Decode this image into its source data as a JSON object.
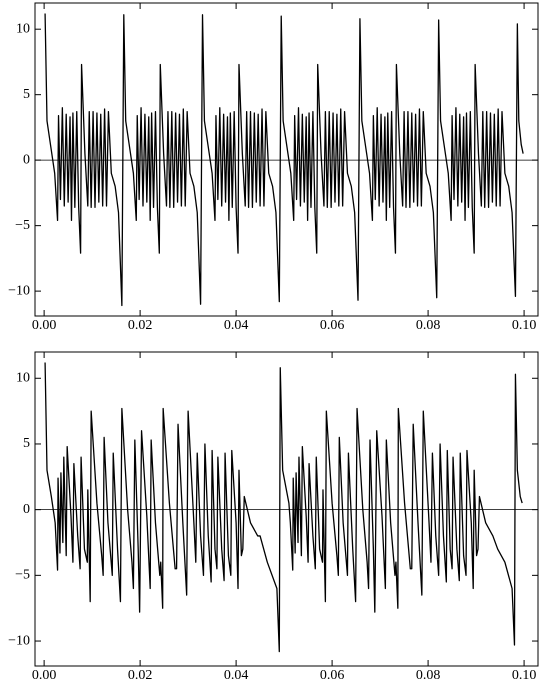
{
  "chart_data": [
    {
      "type": "line",
      "color": "#000000",
      "xlim": [
        -0.0019,
        0.1029
      ],
      "ylim": [
        -11.9,
        12.0
      ],
      "xticks": [
        {
          "value": 0,
          "label": "0.00"
        },
        {
          "value": 0.02,
          "label": "0.02"
        },
        {
          "value": 0.04,
          "label": "0.04"
        },
        {
          "value": 0.06,
          "label": "0.06"
        },
        {
          "value": 0.08,
          "label": "0.08"
        },
        {
          "value": 0.1,
          "label": "0.10"
        }
      ],
      "yticks": [
        {
          "value": -10,
          "label": "−10"
        },
        {
          "value": -5,
          "label": "−5"
        },
        0,
        5,
        10
      ],
      "x": [
        0.0002,
        0.0006,
        0.0014,
        0.0022,
        0.0028,
        0.003,
        0.0034,
        0.0038,
        0.0042,
        0.0046,
        0.005,
        0.0054,
        0.0057,
        0.006,
        0.0064,
        0.0068,
        0.0072,
        0.0076,
        0.0078,
        0.0085,
        0.0091,
        0.0094,
        0.0098,
        0.0102,
        0.0106,
        0.011,
        0.0114,
        0.0118,
        0.0122,
        0.0126,
        0.013,
        0.0134,
        0.014,
        0.0148,
        0.0155,
        0.0162,
        0.0166,
        0.017,
        0.0178,
        0.0186,
        0.0192,
        0.0194,
        0.0198,
        0.0202,
        0.0206,
        0.021,
        0.0214,
        0.0218,
        0.0221,
        0.0224,
        0.0228,
        0.0232,
        0.0236,
        0.024,
        0.0242,
        0.0249,
        0.0255,
        0.0258,
        0.0262,
        0.0266,
        0.027,
        0.0274,
        0.0278,
        0.0282,
        0.0286,
        0.029,
        0.0294,
        0.0298,
        0.0304,
        0.0312,
        0.0319,
        0.0326,
        0.033,
        0.0334,
        0.0342,
        0.035,
        0.0356,
        0.0358,
        0.0362,
        0.0366,
        0.037,
        0.0374,
        0.0378,
        0.0382,
        0.0385,
        0.0388,
        0.0392,
        0.0396,
        0.04,
        0.0404,
        0.0406,
        0.0413,
        0.0419,
        0.0422,
        0.0426,
        0.043,
        0.0434,
        0.0438,
        0.0442,
        0.0446,
        0.045,
        0.0454,
        0.0458,
        0.0462,
        0.0468,
        0.0476,
        0.0483,
        0.049,
        0.0494,
        0.0498,
        0.0506,
        0.0514,
        0.052,
        0.0522,
        0.0526,
        0.053,
        0.0534,
        0.0538,
        0.0542,
        0.0546,
        0.0549,
        0.0552,
        0.0556,
        0.056,
        0.0564,
        0.0568,
        0.057,
        0.0577,
        0.0583,
        0.0586,
        0.059,
        0.0594,
        0.0598,
        0.0602,
        0.0606,
        0.061,
        0.0614,
        0.0618,
        0.0622,
        0.0626,
        0.0632,
        0.064,
        0.0647,
        0.0654,
        0.0658,
        0.0662,
        0.067,
        0.0678,
        0.0684,
        0.0686,
        0.069,
        0.0694,
        0.0698,
        0.0702,
        0.0706,
        0.071,
        0.0713,
        0.0716,
        0.072,
        0.0724,
        0.0728,
        0.0732,
        0.0734,
        0.0741,
        0.0747,
        0.075,
        0.0754,
        0.0758,
        0.0762,
        0.0766,
        0.077,
        0.0774,
        0.0778,
        0.0782,
        0.0786,
        0.079,
        0.0796,
        0.0804,
        0.0811,
        0.0818,
        0.0822,
        0.0826,
        0.0834,
        0.0842,
        0.0848,
        0.085,
        0.0854,
        0.0858,
        0.0862,
        0.0866,
        0.087,
        0.0874,
        0.0877,
        0.088,
        0.0884,
        0.0888,
        0.0892,
        0.0896,
        0.0898,
        0.0905,
        0.0911,
        0.0914,
        0.0918,
        0.0922,
        0.0926,
        0.093,
        0.0934,
        0.0938,
        0.0942,
        0.0946,
        0.095,
        0.0954,
        0.096,
        0.0968,
        0.0975,
        0.0982,
        0.0986,
        0.0989,
        0.0994,
        0.0998
      ],
      "values": [
        11.2,
        3,
        1,
        -1,
        -4.6,
        3.4,
        -3,
        4,
        -3.5,
        3.5,
        -3.2,
        3.3,
        -4.6,
        3.6,
        -3.6,
        3.7,
        -3.6,
        -7.1,
        7.3,
        0.5,
        -3.5,
        3.7,
        -3.6,
        3.7,
        -3.6,
        3.6,
        -3.2,
        3.5,
        -3.5,
        3.9,
        -3.5,
        3.7,
        -1,
        -2,
        -4,
        -11.1,
        11.1,
        3,
        1,
        -1,
        -4.6,
        3.4,
        -3,
        4,
        -3.5,
        3.5,
        -3.2,
        3.3,
        -4.6,
        3.6,
        -3.6,
        3.7,
        -3.6,
        -7.1,
        7.3,
        0.5,
        -3.5,
        3.7,
        -3.6,
        3.7,
        -3.6,
        3.6,
        -3.2,
        3.5,
        -3.5,
        3.9,
        -3.5,
        3.7,
        -1,
        -2,
        -4,
        -11,
        11.1,
        3,
        1,
        -1,
        -4.6,
        3.4,
        -3,
        4,
        -3.5,
        3.5,
        -3.2,
        3.3,
        -4.6,
        3.6,
        -3.6,
        3.7,
        -3.6,
        -7.1,
        7.3,
        0.5,
        -3.5,
        3.7,
        -3.6,
        3.7,
        -3.6,
        3.6,
        -3.2,
        3.5,
        -3.5,
        3.9,
        -3.5,
        3.7,
        -1,
        -2,
        -4,
        -10.8,
        11,
        3,
        1,
        -1,
        -4.6,
        3.4,
        -3,
        4,
        -3.5,
        3.5,
        -3.2,
        3.3,
        -4.6,
        3.6,
        -3.6,
        3.7,
        -3.6,
        -7.1,
        7.3,
        0.5,
        -3.5,
        3.7,
        -3.6,
        3.7,
        -3.6,
        3.6,
        -3.2,
        3.5,
        -3.5,
        3.9,
        -3.5,
        3.7,
        -1,
        -2,
        -4,
        -10.7,
        10.8,
        3,
        1,
        -1,
        -4.6,
        3.4,
        -3,
        4,
        -3.5,
        3.5,
        -3.2,
        3.3,
        -4.6,
        3.6,
        -3.6,
        3.7,
        -3.6,
        -7.1,
        7.3,
        0.5,
        -3.5,
        3.7,
        -3.6,
        3.7,
        -3.6,
        3.6,
        -3.2,
        3.5,
        -3.5,
        3.9,
        -3.5,
        3.7,
        -1,
        -2,
        -4,
        -10.5,
        10.7,
        3,
        1,
        -1,
        -4.6,
        3.4,
        -3,
        4,
        -3.5,
        3.5,
        -3.2,
        3.3,
        -4.6,
        3.6,
        -3.6,
        3.7,
        -3.6,
        -7.1,
        7.3,
        0.5,
        -3.5,
        3.7,
        -3.6,
        3.7,
        -3.6,
        3.6,
        -3.2,
        3.5,
        -3.5,
        3.9,
        -3.5,
        3.7,
        -1,
        -2,
        -4,
        -10.4,
        10.4,
        3,
        1.2,
        0.5
      ]
    },
    {
      "type": "line",
      "color": "#000000",
      "xlim": [
        -0.0019,
        0.1029
      ],
      "ylim": [
        -11.9,
        12.0
      ],
      "xticks": [
        {
          "value": 0,
          "label": "0.00"
        },
        {
          "value": 0.02,
          "label": "0.02"
        },
        {
          "value": 0.04,
          "label": "0.04"
        },
        {
          "value": 0.06,
          "label": "0.06"
        },
        {
          "value": 0.08,
          "label": "0.08"
        },
        {
          "value": 0.1,
          "label": "0.10"
        }
      ],
      "yticks": [
        {
          "value": -10,
          "label": "−10"
        },
        {
          "value": -5,
          "label": "−5"
        },
        0,
        5,
        10
      ],
      "x": [
        0.0002,
        0.0006,
        0.0015,
        0.0023,
        0.0028,
        0.0029,
        0.0033,
        0.0035,
        0.0039,
        0.0041,
        0.0046,
        0.0048,
        0.0056,
        0.006,
        0.0062,
        0.007,
        0.0075,
        0.0077,
        0.0084,
        0.009,
        0.0091,
        0.0096,
        0.0098,
        0.011,
        0.012,
        0.0123,
        0.0125,
        0.0133,
        0.0142,
        0.0144,
        0.0153,
        0.0159,
        0.0162,
        0.0174,
        0.0183,
        0.0186,
        0.0189,
        0.0196,
        0.0199,
        0.0203,
        0.0214,
        0.0221,
        0.0223,
        0.0232,
        0.0241,
        0.0243,
        0.0247,
        0.0248,
        0.0261,
        0.0273,
        0.0276,
        0.0279,
        0.0289,
        0.0297,
        0.03,
        0.0312,
        0.0316,
        0.0319,
        0.0326,
        0.0332,
        0.0335,
        0.0342,
        0.0348,
        0.035,
        0.0356,
        0.036,
        0.0362,
        0.037,
        0.0375,
        0.0377,
        0.0384,
        0.0389,
        0.0391,
        0.04,
        0.0404,
        0.0406,
        0.0411,
        0.0414,
        0.0417,
        0.043,
        0.0445,
        0.045,
        0.0465,
        0.0485,
        0.049,
        0.0492,
        0.0497,
        0.051,
        0.0513,
        0.0518,
        0.0519,
        0.0523,
        0.0525,
        0.0529,
        0.0531,
        0.0536,
        0.0538,
        0.0546,
        0.055,
        0.0552,
        0.056,
        0.0565,
        0.0567,
        0.0574,
        0.058,
        0.0581,
        0.0586,
        0.0588,
        0.06,
        0.061,
        0.0613,
        0.0615,
        0.0623,
        0.0632,
        0.0634,
        0.0643,
        0.0649,
        0.0652,
        0.0664,
        0.0673,
        0.0676,
        0.0679,
        0.0686,
        0.0689,
        0.0693,
        0.0704,
        0.0711,
        0.0713,
        0.0722,
        0.0731,
        0.0733,
        0.0737,
        0.0738,
        0.0751,
        0.0763,
        0.0766,
        0.0769,
        0.0779,
        0.0787,
        0.079,
        0.0802,
        0.0806,
        0.0809,
        0.0816,
        0.0822,
        0.0825,
        0.0832,
        0.0838,
        0.084,
        0.0846,
        0.085,
        0.0852,
        0.086,
        0.0865,
        0.0867,
        0.0874,
        0.0879,
        0.0881,
        0.089,
        0.0894,
        0.0896,
        0.0901,
        0.0904,
        0.0907,
        0.092,
        0.0935,
        0.0945,
        0.096,
        0.0975,
        0.098,
        0.0982,
        0.0986,
        0.0992,
        0.0996
      ],
      "values": [
        11.2,
        3,
        1,
        -1,
        -4.6,
        2.4,
        -3.3,
        2.8,
        -2.5,
        4,
        -3.5,
        4.8,
        -0.5,
        -4,
        3.5,
        -2,
        -4.5,
        4,
        -3,
        -4,
        1.5,
        -7,
        7.5,
        0.5,
        -3.5,
        -5,
        5.5,
        -1,
        -5,
        4.3,
        -3,
        -7,
        7.7,
        0,
        -4,
        -6,
        5.3,
        -3,
        -7.8,
        6,
        -0.5,
        -6,
        5.3,
        -1,
        -5,
        -4,
        -7.5,
        7.7,
        0.5,
        -4.5,
        -4.5,
        6.5,
        -1,
        -6.5,
        7.5,
        -1,
        -4,
        4.3,
        -2,
        -5,
        5,
        -2,
        -5.5,
        4.5,
        -3,
        -4.5,
        4,
        -3,
        -5.4,
        4.3,
        -3.5,
        -5,
        4.5,
        -1,
        -6,
        3,
        -3.5,
        -3,
        1,
        -1,
        -2,
        -2,
        -4,
        -6,
        -10.8,
        10.8,
        3,
        0.5,
        -1,
        -4.6,
        2.4,
        -3.3,
        2.8,
        -2.5,
        4,
        -3.5,
        4.8,
        -0.5,
        -4,
        3.5,
        -2,
        -4.5,
        4,
        -3,
        -4,
        1.5,
        -7,
        7.5,
        0.5,
        -3.5,
        -5,
        5.5,
        -1,
        -5,
        4.3,
        -3,
        -7,
        7.7,
        0,
        -4,
        -6,
        5.3,
        -3,
        -7.8,
        6,
        -0.5,
        -6,
        5.3,
        -1,
        -5,
        -4,
        -7.5,
        7.7,
        0.5,
        -4.5,
        -4.5,
        6.5,
        -1,
        -6.5,
        7.5,
        -1,
        -4,
        4.3,
        -2,
        -5,
        5,
        -2,
        -5.5,
        4.5,
        -3,
        -4.5,
        4,
        -3,
        -5.4,
        4.3,
        -3.5,
        -5,
        4.5,
        -1,
        -6,
        3,
        -3.5,
        -3,
        1,
        -1,
        -2,
        -3,
        -4,
        -6,
        -10.3,
        10.3,
        3,
        1,
        0.5
      ]
    }
  ]
}
